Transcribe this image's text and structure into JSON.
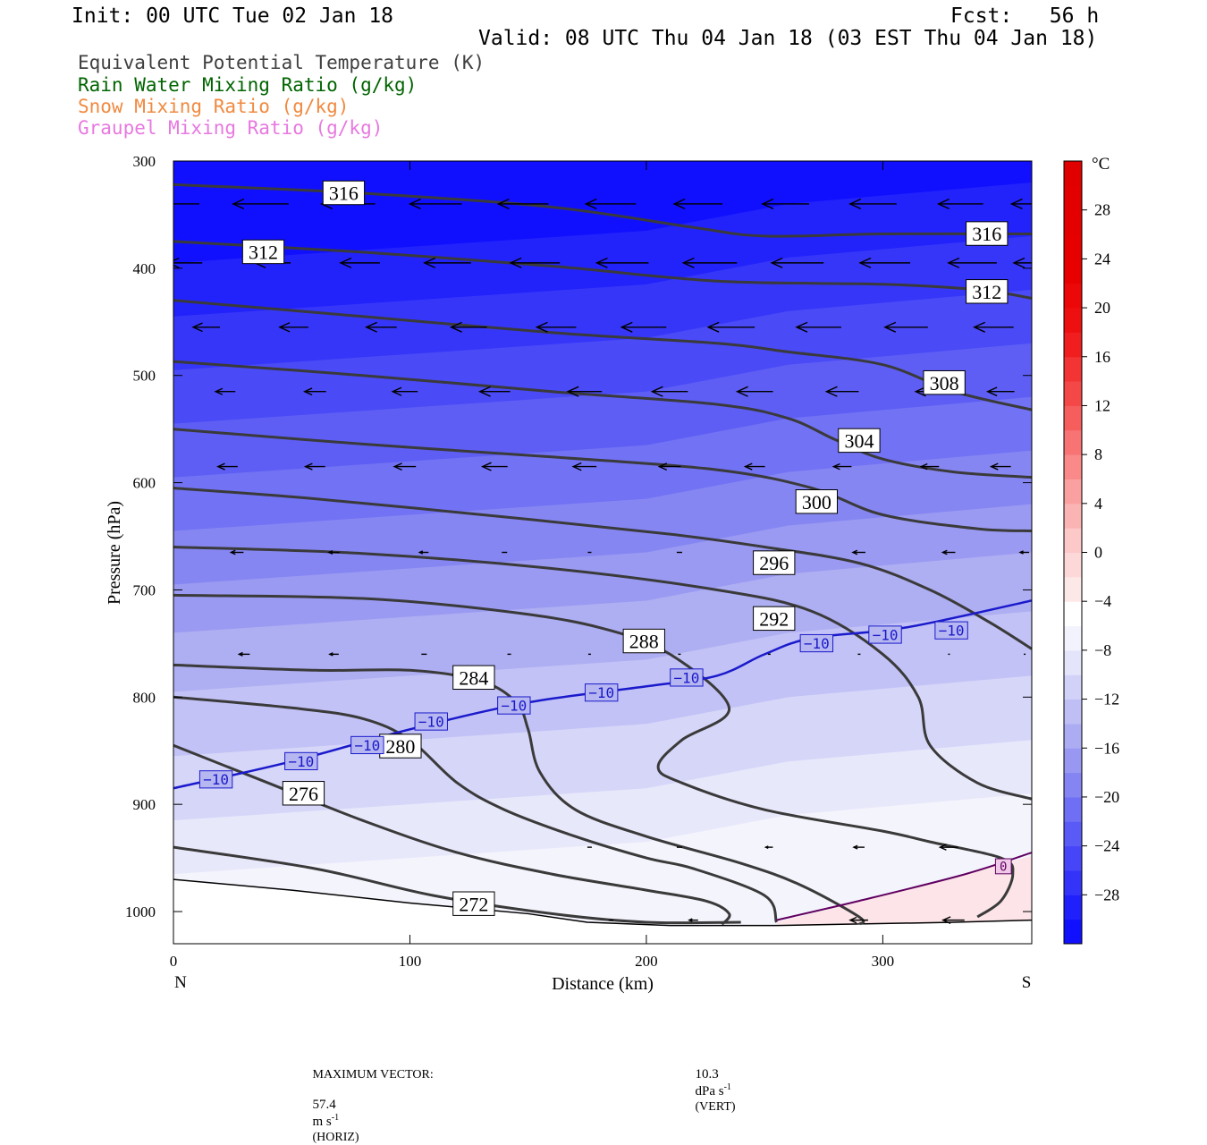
{
  "header": {
    "init": "Init: 00 UTC Tue 02 Jan 18",
    "fcst": "Fcst:   56 h",
    "valid": "Valid: 08 UTC Thu 04 Jan 18 (03 EST Thu 04 Jan 18)"
  },
  "legend": [
    {
      "text": "Equivalent Potential Temperature (K)",
      "color": "#404040"
    },
    {
      "text": "Rain Water Mixing Ratio (g/kg)",
      "color": "#006400"
    },
    {
      "text": "Snow Mixing Ratio (g/kg)",
      "color": "#f08a40"
    },
    {
      "text": "Graupel Mixing Ratio (g/kg)",
      "color": "#e878e0"
    }
  ],
  "footer": {
    "max_vector_label": "MAXIMUM VECTOR:",
    "horiz_value": "57.4",
    "horiz_unit": "m s",
    "horiz_exp": "-1",
    "horiz_tag": "(HORIZ)",
    "vert_value": "10.3",
    "vert_unit": "dPa s",
    "vert_exp": "-1",
    "vert_tag": "(VERT)"
  },
  "chart_data": {
    "type": "cross-section contour",
    "xlabel": "Distance (km)",
    "ylabel": "Pressure (hPa)",
    "x_left_label": "N",
    "x_right_label": "S",
    "xlim": [
      0,
      363
    ],
    "ylim": [
      1030,
      300
    ],
    "x_ticks": [
      0,
      100,
      200,
      300
    ],
    "y_ticks": [
      300,
      400,
      500,
      600,
      700,
      800,
      900,
      1000
    ],
    "colorbar": {
      "unit": "°C",
      "range": [
        -32,
        32
      ],
      "tick_labels": [
        "28",
        "24",
        "20",
        "16",
        "12",
        "8",
        "4",
        "0",
        "-4",
        "-8",
        "-12",
        "-16",
        "-20",
        "-24",
        "-28"
      ],
      "colors": [
        "#1010ff",
        "#2020fc",
        "#3333fa",
        "#4646f8",
        "#5a5af6",
        "#6f6ff5",
        "#8484f3",
        "#9898f2",
        "#acacf3",
        "#bfbff5",
        "#d2d2f8",
        "#e4e4fa",
        "#f3f3fd",
        "#ffffff",
        "#fde8e8",
        "#fcd8d8",
        "#fcc8c8",
        "#fbb4b4",
        "#fba0a0",
        "#fa8a8a",
        "#f87474",
        "#f65e5e",
        "#f44848",
        "#f23434",
        "#f01e1e",
        "#ee1010",
        "#ec0808",
        "#e80000",
        "#e60000",
        "#e40000",
        "#e20000",
        "#e00000"
      ]
    },
    "theta_e_contours": [
      {
        "value": 272,
        "points": [
          [
            0,
            940
          ],
          [
            60,
            960
          ],
          [
            110,
            985
          ],
          [
            160,
            1002
          ],
          [
            200,
            1010
          ],
          [
            240,
            1010
          ]
        ],
        "label_at": [
          127,
          993
        ]
      },
      {
        "value": 276,
        "points": [
          [
            0,
            845
          ],
          [
            40,
            880
          ],
          [
            80,
            915
          ],
          [
            120,
            945
          ],
          [
            160,
            965
          ],
          [
            200,
            980
          ],
          [
            225,
            990
          ],
          [
            235,
            1002
          ],
          [
            232,
            1012
          ]
        ],
        "label_at": [
          55,
          890
        ]
      },
      {
        "value": 280,
        "points": [
          [
            0,
            800
          ],
          [
            50,
            810
          ],
          [
            80,
            820
          ],
          [
            100,
            840
          ],
          [
            120,
            880
          ],
          [
            140,
            905
          ],
          [
            170,
            930
          ],
          [
            200,
            950
          ],
          [
            220,
            960
          ],
          [
            250,
            985
          ],
          [
            255,
            1010
          ]
        ],
        "label_at": [
          96,
          846
        ]
      },
      {
        "value": 284,
        "points": [
          [
            0,
            770
          ],
          [
            60,
            775
          ],
          [
            100,
            775
          ],
          [
            130,
            785
          ],
          [
            145,
            805
          ],
          [
            150,
            830
          ],
          [
            155,
            870
          ],
          [
            170,
            905
          ],
          [
            200,
            930
          ],
          [
            240,
            955
          ],
          [
            265,
            975
          ],
          [
            290,
            1005
          ],
          [
            290,
            1012
          ]
        ],
        "label_at": [
          127,
          782
        ]
      },
      {
        "value": 288,
        "points": [
          [
            0,
            705
          ],
          [
            80,
            708
          ],
          [
            140,
            720
          ],
          [
            180,
            735
          ],
          [
            210,
            760
          ],
          [
            235,
            810
          ],
          [
            215,
            840
          ],
          [
            205,
            865
          ],
          [
            215,
            880
          ],
          [
            250,
            905
          ],
          [
            300,
            925
          ],
          [
            320,
            935
          ],
          [
            350,
            950
          ],
          [
            355,
            965
          ],
          [
            350,
            990
          ],
          [
            340,
            1005
          ]
        ],
        "label_at": [
          199,
          748
        ]
      },
      {
        "value": 292,
        "points": [
          [
            0,
            660
          ],
          [
            80,
            666
          ],
          [
            160,
            680
          ],
          [
            230,
            700
          ],
          [
            270,
            720
          ],
          [
            300,
            760
          ],
          [
            315,
            800
          ],
          [
            320,
            845
          ],
          [
            340,
            880
          ],
          [
            363,
            895
          ]
        ],
        "label_at": [
          254,
          727
        ]
      },
      {
        "value": 296,
        "points": [
          [
            0,
            605
          ],
          [
            60,
            615
          ],
          [
            140,
            632
          ],
          [
            210,
            648
          ],
          [
            250,
            660
          ],
          [
            290,
            675
          ],
          [
            320,
            700
          ],
          [
            345,
            730
          ],
          [
            363,
            755
          ]
        ],
        "label_at": [
          254,
          675
        ]
      },
      {
        "value": 300,
        "points": [
          [
            0,
            550
          ],
          [
            80,
            564
          ],
          [
            160,
            576
          ],
          [
            230,
            588
          ],
          [
            270,
            605
          ],
          [
            300,
            630
          ],
          [
            340,
            643
          ],
          [
            363,
            645
          ]
        ],
        "label_at": [
          272,
          618
        ]
      },
      {
        "value": 304,
        "points": [
          [
            0,
            487
          ],
          [
            80,
            500
          ],
          [
            160,
            515
          ],
          [
            230,
            527
          ],
          [
            260,
            540
          ],
          [
            280,
            560
          ],
          [
            300,
            578
          ],
          [
            330,
            590
          ],
          [
            363,
            595
          ]
        ],
        "label_at": [
          290,
          561
        ]
      },
      {
        "value": 308,
        "points": [
          [
            0,
            430
          ],
          [
            80,
            445
          ],
          [
            160,
            460
          ],
          [
            230,
            470
          ],
          [
            260,
            478
          ],
          [
            300,
            490
          ],
          [
            330,
            515
          ],
          [
            363,
            532
          ]
        ],
        "label_at": [
          326,
          507
        ]
      },
      {
        "value": 312,
        "points": [
          [
            0,
            375
          ],
          [
            80,
            385
          ],
          [
            160,
            398
          ],
          [
            230,
            412
          ],
          [
            300,
            415
          ],
          [
            340,
            420
          ],
          [
            363,
            428
          ]
        ],
        "label_at": [
          38,
          385
        ],
        "label_at2": [
          344,
          422
        ]
      },
      {
        "value": 316,
        "points": [
          [
            0,
            322
          ],
          [
            80,
            330
          ],
          [
            160,
            343
          ],
          [
            220,
            362
          ],
          [
            250,
            370
          ],
          [
            300,
            368
          ],
          [
            363,
            368
          ]
        ],
        "label_at": [
          72,
          330
        ],
        "label_at2": [
          344,
          368
        ]
      }
    ],
    "isotherm_minus10": {
      "value": -10,
      "color": "#1a1acc",
      "points": [
        [
          0,
          885
        ],
        [
          50,
          860
        ],
        [
          100,
          830
        ],
        [
          150,
          805
        ],
        [
          200,
          790
        ],
        [
          230,
          780
        ],
        [
          250,
          760
        ],
        [
          270,
          745
        ],
        [
          310,
          735
        ],
        [
          363,
          710
        ]
      ],
      "labels": [
        [
          18,
          877
        ],
        [
          54,
          860
        ],
        [
          82,
          845
        ],
        [
          109,
          823
        ],
        [
          144,
          808
        ],
        [
          181,
          796
        ],
        [
          217,
          782
        ],
        [
          272,
          750
        ],
        [
          301,
          742
        ],
        [
          329,
          738
        ]
      ]
    },
    "isotherm_zero": {
      "value": 0,
      "color": "#600060",
      "points": [
        [
          255,
          1008
        ],
        [
          290,
          990
        ],
        [
          335,
          965
        ],
        [
          363,
          945
        ]
      ],
      "labels": [
        [
          351,
          958
        ]
      ]
    },
    "terrain": [
      [
        0,
        970
      ],
      [
        50,
        980
      ],
      [
        100,
        992
      ],
      [
        150,
        1002
      ],
      [
        175,
        1010
      ],
      [
        210,
        1013
      ],
      [
        255,
        1013
      ],
      [
        280,
        1012
      ],
      [
        330,
        1010
      ],
      [
        363,
        1008
      ]
    ],
    "wind_vectors": [
      {
        "p": 340,
        "x": [
          0,
          37,
          74,
          111,
          148,
          185,
          222,
          259,
          296,
          333,
          363
        ],
        "len": [
          58,
          62,
          60,
          58,
          56,
          56,
          54,
          52,
          52,
          50,
          45
        ]
      },
      {
        "p": 395,
        "x": [
          5,
          42,
          79,
          116,
          153,
          190,
          227,
          264,
          301,
          338,
          363
        ],
        "len": [
          38,
          40,
          44,
          52,
          55,
          58,
          60,
          58,
          56,
          54,
          40
        ]
      },
      {
        "p": 455,
        "x": [
          14,
          51,
          88,
          125,
          162,
          199,
          236,
          273,
          310,
          347
        ],
        "len": [
          30,
          32,
          34,
          40,
          44,
          50,
          52,
          50,
          48,
          44
        ]
      },
      {
        "p": 515,
        "x": [
          22,
          60,
          98,
          136,
          174,
          210,
          246,
          283,
          320,
          350
        ],
        "len": [
          22,
          24,
          28,
          34,
          38,
          40,
          40,
          36,
          32,
          30
        ]
      },
      {
        "p": 585,
        "x": [
          23,
          60,
          98,
          136,
          174,
          210,
          246,
          283,
          320,
          350
        ],
        "len": [
          22,
          22,
          24,
          28,
          26,
          24,
          22,
          20,
          20,
          22
        ]
      },
      {
        "p": 665,
        "x": [
          27,
          68,
          106,
          140,
          176,
          214,
          252,
          290,
          328,
          360
        ],
        "len": [
          14,
          12,
          10,
          6,
          4,
          6,
          10,
          14,
          14,
          10
        ]
      },
      {
        "p": 760,
        "x": [
          30,
          68,
          106,
          142,
          176,
          214,
          252,
          290,
          328,
          360
        ],
        "len": [
          12,
          10,
          6,
          4,
          3,
          3,
          3,
          3,
          2,
          2
        ]
      },
      {
        "p": 940,
        "x": [
          176,
          214,
          252,
          290,
          328
        ],
        "len": [
          5,
          6,
          8,
          12,
          20
        ]
      },
      {
        "p": 1008,
        "x": [
          185,
          220,
          290,
          330
        ],
        "len": [
          5,
          10,
          20,
          24
        ]
      }
    ]
  }
}
